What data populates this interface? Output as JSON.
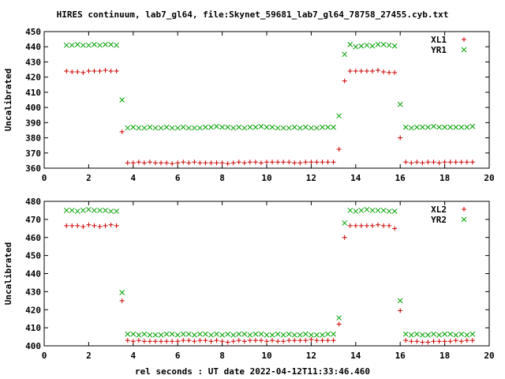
{
  "title": "HIRES continuum, lab7_gl64, file:Skynet_59681_lab7_gl64_78758_27455.cyb.txt",
  "xlabel": "rel seconds : UT date 2022-04-12T11:33:46.460",
  "colors": {
    "xl": "#cc0000",
    "yr": "#00a000"
  },
  "chart_data": [
    {
      "type": "scatter",
      "ylabel": "Uncalibrated",
      "xlim": [
        0,
        20
      ],
      "ylim": [
        360,
        450
      ],
      "xticks": [
        0,
        2,
        4,
        6,
        8,
        10,
        12,
        14,
        16,
        18,
        20
      ],
      "yticks": [
        360,
        370,
        380,
        390,
        400,
        410,
        420,
        430,
        440,
        450
      ],
      "legend_position": "top-right",
      "grid": false,
      "series": [
        {
          "name": "XL1",
          "marker": "plus",
          "x": [
            1.0,
            1.25,
            1.5,
            1.75,
            2.0,
            2.25,
            2.5,
            2.75,
            3.0,
            3.25,
            3.5,
            3.75,
            4.0,
            4.25,
            4.5,
            4.75,
            5.0,
            5.25,
            5.5,
            5.75,
            6.0,
            6.25,
            6.5,
            6.75,
            7.0,
            7.25,
            7.5,
            7.75,
            8.0,
            8.25,
            8.5,
            8.75,
            9.0,
            9.25,
            9.5,
            9.75,
            10.0,
            10.25,
            10.5,
            10.75,
            11.0,
            11.25,
            11.5,
            11.75,
            12.0,
            12.25,
            12.5,
            12.75,
            13.0,
            13.25,
            13.5,
            13.75,
            14.0,
            14.25,
            14.5,
            14.75,
            15.0,
            15.25,
            15.5,
            15.75,
            16.0,
            16.25,
            16.5,
            16.75,
            17.0,
            17.25,
            17.5,
            17.75,
            18.0,
            18.25,
            18.5,
            18.75,
            19.0,
            19.25
          ],
          "y": [
            424,
            423.5,
            423.5,
            423,
            424,
            424,
            424,
            424.5,
            424,
            424,
            384,
            363.5,
            363.5,
            364,
            363.5,
            364,
            363.5,
            363.5,
            363.5,
            363,
            363.5,
            364,
            363.5,
            364,
            363.5,
            363.5,
            363.5,
            363.5,
            363.5,
            363,
            363.5,
            364,
            363.5,
            364,
            364,
            363.5,
            364,
            364,
            364,
            364,
            364,
            363.5,
            363.5,
            364,
            364,
            364,
            364,
            364,
            364,
            372.5,
            417.5,
            424,
            424,
            424,
            424,
            424,
            424.5,
            423.5,
            423,
            423,
            380,
            364,
            363.5,
            364,
            363.5,
            364,
            364,
            363.5,
            364,
            364,
            364,
            364,
            364,
            364
          ]
        },
        {
          "name": "YR1",
          "marker": "cross",
          "x": [
            1.0,
            1.25,
            1.5,
            1.75,
            2.0,
            2.25,
            2.5,
            2.75,
            3.0,
            3.25,
            3.5,
            3.75,
            4.0,
            4.25,
            4.5,
            4.75,
            5.0,
            5.25,
            5.5,
            5.75,
            6.0,
            6.25,
            6.5,
            6.75,
            7.0,
            7.25,
            7.5,
            7.75,
            8.0,
            8.25,
            8.5,
            8.75,
            9.0,
            9.25,
            9.5,
            9.75,
            10.0,
            10.25,
            10.5,
            10.75,
            11.0,
            11.25,
            11.5,
            11.75,
            12.0,
            12.25,
            12.5,
            12.75,
            13.0,
            13.25,
            13.5,
            13.75,
            14.0,
            14.25,
            14.5,
            14.75,
            15.0,
            15.25,
            15.5,
            15.75,
            16.0,
            16.25,
            16.5,
            16.75,
            17.0,
            17.25,
            17.5,
            17.75,
            18.0,
            18.25,
            18.5,
            18.75,
            19.0,
            19.25
          ],
          "y": [
            441,
            441,
            441.5,
            441,
            441,
            441.5,
            441,
            441.5,
            441.5,
            441,
            405,
            386.5,
            387,
            386.5,
            386.5,
            387,
            386.5,
            386.5,
            387,
            386.5,
            386.5,
            387,
            386.5,
            386.5,
            386.5,
            387,
            387,
            387.5,
            387,
            387,
            386.5,
            387,
            386.5,
            387,
            387,
            387.5,
            387,
            387,
            386.5,
            386.5,
            386.5,
            387,
            386.5,
            387,
            386.5,
            386.5,
            387,
            387,
            387,
            394.5,
            435,
            441.5,
            440,
            440.5,
            441,
            440.5,
            441.5,
            441.5,
            441,
            440.5,
            402,
            387,
            386.5,
            387,
            387,
            387,
            387.5,
            387,
            387,
            387,
            387,
            387,
            387,
            387.5
          ]
        }
      ],
      "legend": [
        "XL1",
        "YR1"
      ]
    },
    {
      "type": "scatter",
      "ylabel": "Uncalibrated",
      "xlim": [
        0,
        20
      ],
      "ylim": [
        400,
        480
      ],
      "xticks": [
        0,
        2,
        4,
        6,
        8,
        10,
        12,
        14,
        16,
        18,
        20
      ],
      "yticks": [
        400,
        410,
        420,
        430,
        440,
        450,
        460,
        470,
        480
      ],
      "legend_position": "top-right",
      "grid": false,
      "series": [
        {
          "name": "XL2",
          "marker": "plus",
          "x": [
            1.0,
            1.25,
            1.5,
            1.75,
            2.0,
            2.25,
            2.5,
            2.75,
            3.0,
            3.25,
            3.5,
            3.75,
            4.0,
            4.25,
            4.5,
            4.75,
            5.0,
            5.25,
            5.5,
            5.75,
            6.0,
            6.25,
            6.5,
            6.75,
            7.0,
            7.25,
            7.5,
            7.75,
            8.0,
            8.25,
            8.5,
            8.75,
            9.0,
            9.25,
            9.5,
            9.75,
            10.0,
            10.25,
            10.5,
            10.75,
            11.0,
            11.25,
            11.5,
            11.75,
            12.0,
            12.25,
            12.5,
            12.75,
            13.0,
            13.25,
            13.5,
            13.75,
            14.0,
            14.25,
            14.5,
            14.75,
            15.0,
            15.25,
            15.5,
            15.75,
            16.0,
            16.25,
            16.5,
            16.75,
            17.0,
            17.25,
            17.5,
            17.75,
            18.0,
            18.25,
            18.5,
            18.75,
            19.0,
            19.25
          ],
          "y": [
            466.5,
            466.5,
            466.5,
            466,
            467,
            466.5,
            466,
            466.5,
            467,
            466.5,
            425,
            403,
            402.5,
            403,
            402.5,
            402.5,
            402.5,
            402.5,
            402.5,
            402.5,
            402.5,
            403,
            403,
            402.5,
            403,
            403,
            402.5,
            403,
            402.5,
            402,
            402.5,
            403,
            402.5,
            403,
            403,
            403,
            402.5,
            403,
            402.5,
            402.5,
            403,
            403,
            403,
            403,
            403.5,
            403,
            403,
            403,
            403,
            412,
            460,
            466.5,
            466.5,
            466.5,
            466.5,
            466.5,
            467,
            466.5,
            466.5,
            465,
            419.5,
            403,
            402.5,
            402.5,
            402,
            402,
            402.5,
            402.5,
            402.5,
            402.5,
            403,
            402.5,
            403,
            403
          ]
        },
        {
          "name": "YR2",
          "marker": "cross",
          "x": [
            1.0,
            1.25,
            1.5,
            1.75,
            2.0,
            2.25,
            2.5,
            2.75,
            3.0,
            3.25,
            3.5,
            3.75,
            4.0,
            4.25,
            4.5,
            4.75,
            5.0,
            5.25,
            5.5,
            5.75,
            6.0,
            6.25,
            6.5,
            6.75,
            7.0,
            7.25,
            7.5,
            7.75,
            8.0,
            8.25,
            8.5,
            8.75,
            9.0,
            9.25,
            9.5,
            9.75,
            10.0,
            10.25,
            10.5,
            10.75,
            11.0,
            11.25,
            11.5,
            11.75,
            12.0,
            12.25,
            12.5,
            12.75,
            13.0,
            13.25,
            13.5,
            13.75,
            14.0,
            14.25,
            14.5,
            14.75,
            15.0,
            15.25,
            15.5,
            15.75,
            16.0,
            16.25,
            16.5,
            16.75,
            17.0,
            17.25,
            17.5,
            17.75,
            18.0,
            18.25,
            18.5,
            18.75,
            19.0,
            19.25
          ],
          "y": [
            475,
            475,
            474.5,
            475,
            475.5,
            475,
            475,
            475,
            474.5,
            474.5,
            429.5,
            406.5,
            406.5,
            406,
            406.5,
            406,
            406,
            406,
            406.5,
            406.5,
            406,
            406.5,
            406.5,
            406,
            406.5,
            406.5,
            406,
            406.5,
            406,
            406.5,
            406,
            406.5,
            406.5,
            406,
            406.5,
            406.5,
            406,
            406,
            406.5,
            406,
            406.5,
            406,
            406,
            406.5,
            406,
            406,
            406,
            406.5,
            406.5,
            415.5,
            468,
            475,
            474.5,
            475,
            475.5,
            475,
            475,
            475,
            474.5,
            474.5,
            425,
            406.5,
            406,
            406.5,
            406,
            406,
            406.5,
            406,
            406.5,
            406.5,
            406,
            406.5,
            406,
            406.5
          ]
        }
      ],
      "legend": [
        "XL2",
        "YR2"
      ]
    }
  ]
}
